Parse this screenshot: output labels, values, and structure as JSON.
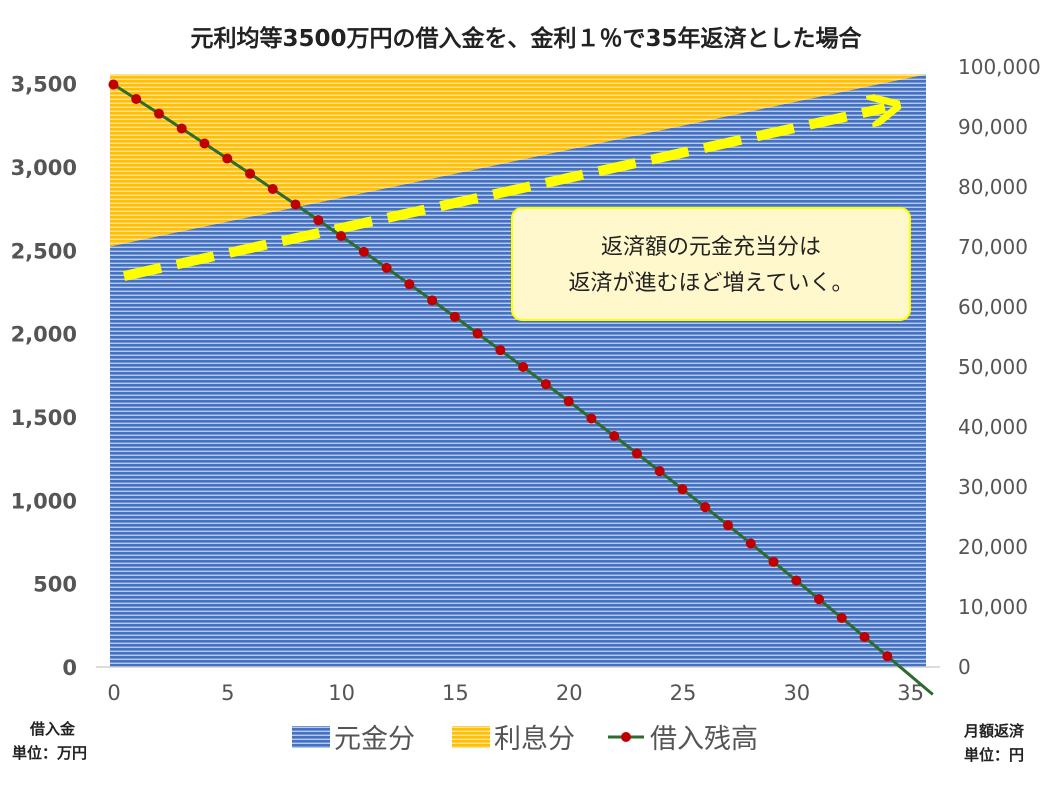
{
  "chart_data": {
    "type": "area",
    "title": "元利均等3500万円の借入金を、金利１％で35年返済とした場合",
    "x_ticks": [
      "0",
      "5",
      "10",
      "15",
      "20",
      "25",
      "30",
      "35"
    ],
    "xlim": [
      0,
      35.5
    ],
    "y_left": {
      "ticks": [
        "0",
        "500",
        "1,000",
        "1,500",
        "2,000",
        "2,500",
        "3,000",
        "3,500"
      ],
      "ylim": [
        0,
        3600
      ],
      "label": [
        "借入金",
        "単位：万円"
      ]
    },
    "y_right": {
      "ticks": [
        "0",
        "10,000",
        "20,000",
        "30,000",
        "40,000",
        "50,000",
        "60,000",
        "70,000",
        "80,000",
        "90,000",
        "100,000"
      ],
      "ylim": [
        0,
        100000
      ],
      "label": [
        "月額返済",
        "単位：円"
      ]
    },
    "monthly_payment": 98800,
    "series": [
      {
        "name": "元金分",
        "axis": "right",
        "color": "#4472c4",
        "x": [
          0,
          35.5
        ],
        "values": [
          70100,
          98800
        ]
      },
      {
        "name": "利息分",
        "axis": "right",
        "color": "#ffc000",
        "x": [
          0,
          35.5
        ],
        "values": [
          28700,
          0
        ]
      },
      {
        "name": "借入残高",
        "axis": "left",
        "color": "#2e6b2e",
        "marker_color": "#c00000",
        "x": [
          -0.2,
          0.8,
          1.8,
          2.8,
          3.8,
          4.8,
          5.8,
          6.8,
          7.8,
          8.8,
          9.8,
          10.8,
          11.8,
          12.8,
          13.8,
          14.8,
          15.8,
          16.8,
          17.8,
          18.8,
          19.8,
          20.8,
          21.8,
          22.8,
          23.8,
          24.8,
          25.8,
          26.8,
          27.8,
          28.8,
          29.8,
          30.8,
          31.8,
          32.8,
          33.8,
          34.8,
          35.8
        ],
        "values": [
          3495,
          3408,
          3320,
          3231,
          3141,
          3051,
          2960,
          2868,
          2775,
          2681,
          2586,
          2491,
          2395,
          2297,
          2200,
          2101,
          2001,
          1901,
          1800,
          1697,
          1595,
          1491,
          1386,
          1281,
          1175,
          1067,
          959,
          851,
          741,
          631,
          519,
          407,
          294,
          180,
          65,
          -50,
          -165
        ]
      }
    ],
    "annotation": {
      "lines": [
        "返済額の元金充当分は",
        "返済が進むほど増えていく。"
      ]
    },
    "legend_position": "bottom",
    "grid": false
  }
}
